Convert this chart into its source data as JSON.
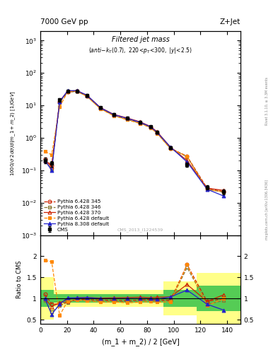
{
  "title_main": "7000 GeV pp",
  "title_right": "Z+Jet",
  "plot_title": "Filtered jet mass",
  "plot_subtitle": "(anti-k_{T}(0.7), 220<p_{T}<300, |y|<2.5)",
  "ylabel_main": "1000/σ 2dσ/d(m_1 + m_2) [1/GeV]",
  "ylabel_ratio": "Ratio to CMS",
  "xlabel": "(m_1 + m_2) / 2 [GeV]",
  "watermark": "CMS_2013_I1224539",
  "rivet_text": "Rivet 3.1.10, ≥ 3.3M events",
  "mcplots_text": "mcplots.cern.ch [arXiv:1306.3436]",
  "x_values": [
    3.5,
    8.5,
    14.5,
    20.5,
    27.5,
    35.0,
    45.0,
    55.0,
    65.0,
    75.0,
    82.5,
    87.5,
    97.5,
    110.0,
    125.0,
    137.5
  ],
  "cms_y": [
    0.2,
    0.16,
    15.0,
    28.0,
    28.0,
    20.0,
    8.5,
    5.2,
    4.0,
    3.0,
    2.2,
    1.5,
    0.5,
    0.15,
    0.03,
    0.022
  ],
  "cms_yerr": [
    0.04,
    0.03,
    2.0,
    3.0,
    3.0,
    2.0,
    0.8,
    0.5,
    0.4,
    0.3,
    0.2,
    0.15,
    0.05,
    0.02,
    0.005,
    0.004
  ],
  "py6_345_y": [
    0.22,
    0.14,
    13.0,
    26.0,
    27.5,
    19.5,
    8.2,
    5.0,
    3.8,
    2.9,
    2.15,
    1.45,
    0.48,
    0.27,
    0.028,
    0.022
  ],
  "py6_346_y": [
    0.19,
    0.11,
    12.5,
    25.5,
    27.0,
    19.0,
    8.0,
    4.9,
    3.7,
    2.85,
    2.1,
    1.42,
    0.47,
    0.26,
    0.026,
    0.021
  ],
  "py6_370_y": [
    0.2,
    0.13,
    13.5,
    27.5,
    28.5,
    20.5,
    8.6,
    5.3,
    4.1,
    3.1,
    2.25,
    1.55,
    0.52,
    0.2,
    0.028,
    0.024
  ],
  "py6_def_y": [
    0.38,
    0.3,
    9.0,
    26.5,
    27.0,
    19.0,
    7.8,
    4.8,
    3.6,
    2.75,
    2.05,
    1.38,
    0.46,
    0.27,
    0.025,
    0.022
  ],
  "py8_def_y": [
    0.2,
    0.1,
    13.0,
    28.5,
    28.5,
    20.5,
    8.5,
    5.2,
    4.0,
    3.0,
    2.2,
    1.48,
    0.52,
    0.18,
    0.026,
    0.016
  ],
  "color_cms": "#000000",
  "color_py6_345": "#cc2200",
  "color_py6_346": "#887733",
  "color_py6_370": "#cc2200",
  "color_py6_def": "#ff8800",
  "color_py8_def": "#2222cc",
  "xlim": [
    0,
    150
  ],
  "ylim_main": [
    0.001,
    2000
  ],
  "ylim_ratio": [
    0.4,
    2.5
  ],
  "band_x_edges": [
    0,
    7,
    10,
    22,
    37,
    73,
    77,
    88,
    92,
    113,
    117,
    143,
    147,
    153
  ],
  "band_yellow": [
    0.5,
    0.5,
    0.2,
    0.2,
    0.2,
    0.2,
    0.2,
    0.2,
    0.4,
    0.4,
    0.6,
    0.6,
    0.6
  ],
  "band_green": [
    0.2,
    0.2,
    0.1,
    0.1,
    0.1,
    0.1,
    0.1,
    0.1,
    0.2,
    0.2,
    0.3,
    0.3,
    0.3
  ]
}
